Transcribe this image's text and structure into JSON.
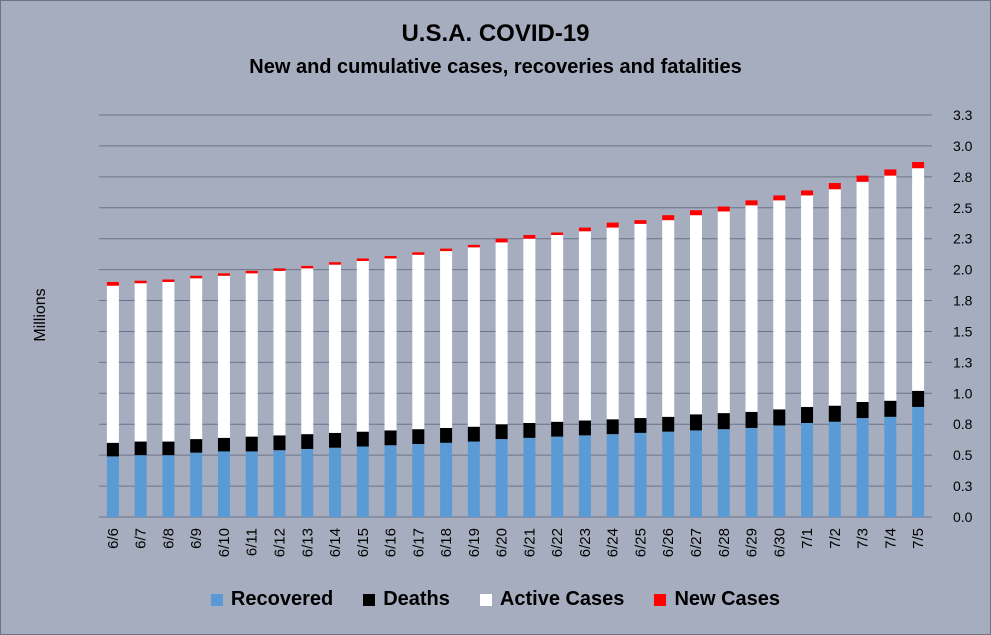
{
  "chart_data": {
    "type": "bar",
    "stacked": true,
    "title": "U.S.A. COVID-19",
    "subtitle": "New and cumulative cases, recoveries and fatalities",
    "xlabel": "",
    "ylabel": "Millions",
    "ylim": [
      0,
      3.25
    ],
    "yticks": [
      "0.0",
      "0.3",
      "0.5",
      "0.8",
      "1.0",
      "1.3",
      "1.5",
      "1.8",
      "2.0",
      "2.3",
      "2.5",
      "2.8",
      "3.0",
      "3.3"
    ],
    "ytick_values": [
      0,
      0.25,
      0.5,
      0.75,
      1.0,
      1.25,
      1.5,
      1.75,
      2.0,
      2.25,
      2.5,
      2.75,
      3.0,
      3.25
    ],
    "grid": true,
    "legend_position": "bottom",
    "categories": [
      "6/6",
      "6/7",
      "6/8",
      "6/9",
      "6/10",
      "6/11",
      "6/12",
      "6/13",
      "6/14",
      "6/15",
      "6/16",
      "6/17",
      "6/18",
      "6/19",
      "6/20",
      "6/21",
      "6/22",
      "6/23",
      "6/24",
      "6/25",
      "6/26",
      "6/27",
      "6/28",
      "6/29",
      "6/30",
      "7/1",
      "7/2",
      "7/3",
      "7/4",
      "7/5"
    ],
    "series": [
      {
        "name": "Recovered",
        "color": "#5b9bd5",
        "values": [
          0.49,
          0.5,
          0.5,
          0.52,
          0.53,
          0.53,
          0.54,
          0.55,
          0.56,
          0.57,
          0.58,
          0.59,
          0.6,
          0.61,
          0.63,
          0.64,
          0.65,
          0.66,
          0.67,
          0.68,
          0.69,
          0.7,
          0.71,
          0.72,
          0.74,
          0.76,
          0.77,
          0.8,
          0.81,
          0.89
        ]
      },
      {
        "name": "Deaths",
        "color": "#000000",
        "values": [
          0.11,
          0.11,
          0.11,
          0.11,
          0.11,
          0.12,
          0.12,
          0.12,
          0.12,
          0.12,
          0.12,
          0.12,
          0.12,
          0.12,
          0.12,
          0.12,
          0.12,
          0.12,
          0.12,
          0.12,
          0.12,
          0.13,
          0.13,
          0.13,
          0.13,
          0.13,
          0.13,
          0.13,
          0.13,
          0.13
        ]
      },
      {
        "name": "Active Cases",
        "color": "#ffffff",
        "values": [
          1.27,
          1.28,
          1.29,
          1.3,
          1.31,
          1.32,
          1.33,
          1.34,
          1.36,
          1.38,
          1.39,
          1.41,
          1.43,
          1.45,
          1.47,
          1.49,
          1.51,
          1.53,
          1.55,
          1.57,
          1.59,
          1.61,
          1.63,
          1.67,
          1.69,
          1.71,
          1.75,
          1.78,
          1.82,
          1.8
        ]
      },
      {
        "name": "New Cases",
        "color": "#ff0000",
        "values": [
          0.03,
          0.02,
          0.02,
          0.02,
          0.02,
          0.02,
          0.02,
          0.02,
          0.02,
          0.02,
          0.02,
          0.02,
          0.02,
          0.02,
          0.03,
          0.03,
          0.02,
          0.03,
          0.04,
          0.03,
          0.04,
          0.04,
          0.04,
          0.04,
          0.04,
          0.04,
          0.05,
          0.05,
          0.05,
          0.05
        ]
      }
    ]
  }
}
